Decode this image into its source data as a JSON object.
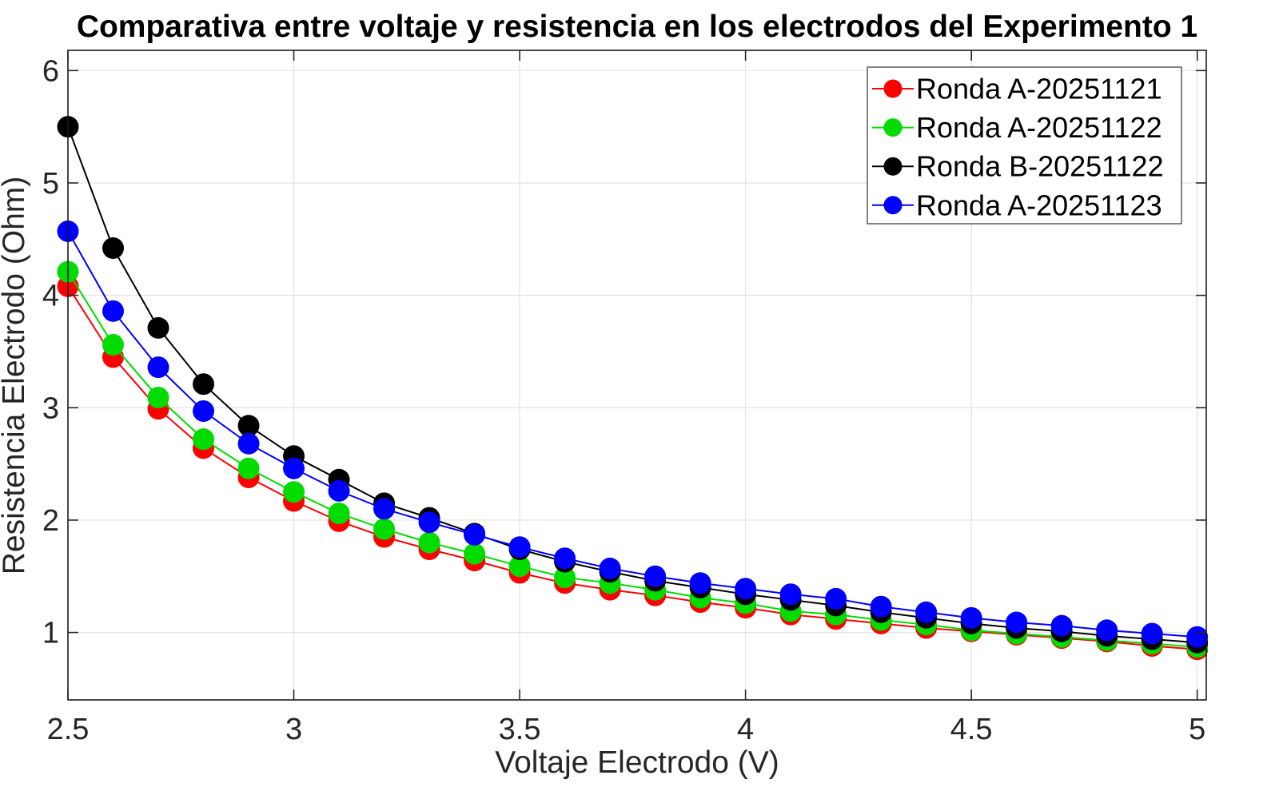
{
  "chart_data": {
    "type": "line",
    "title": "Comparativa entre voltaje y resistencia en los electrodos del Experimento 1",
    "xlabel": "Voltaje Electrodo (V)",
    "ylabel": "Resistencia Electrodo (Ohm)",
    "grid": true,
    "legend_position": "top-right",
    "xlim": [
      2.5,
      5.02
    ],
    "ylim": [
      0.4,
      6.18
    ],
    "x_ticks": [
      2.5,
      3,
      3.5,
      4,
      4.5,
      5
    ],
    "x_tick_labels": [
      "2.5",
      "3",
      "3.5",
      "4",
      "4.5",
      "5"
    ],
    "y_ticks": [
      1,
      2,
      3,
      4,
      5,
      6
    ],
    "y_tick_labels": [
      "1",
      "2",
      "3",
      "4",
      "5",
      "6"
    ],
    "x": [
      2.5,
      2.6,
      2.7,
      2.8,
      2.9,
      3.0,
      3.1,
      3.2,
      3.3,
      3.4,
      3.5,
      3.6,
      3.7,
      3.8,
      3.9,
      4.0,
      4.1,
      4.2,
      4.3,
      4.4,
      4.5,
      4.6,
      4.7,
      4.8,
      4.9,
      5.0
    ],
    "series": [
      {
        "name": "Ronda A-20251121",
        "color": "#FF0000",
        "marker": "circle",
        "values": [
          4.08,
          3.45,
          2.99,
          2.64,
          2.38,
          2.17,
          1.99,
          1.85,
          1.74,
          1.64,
          1.53,
          1.44,
          1.38,
          1.33,
          1.27,
          1.22,
          1.16,
          1.12,
          1.08,
          1.04,
          1.01,
          0.98,
          0.95,
          0.92,
          0.88,
          0.85
        ]
      },
      {
        "name": "Ronda A-20251122",
        "color": "#00DC00",
        "marker": "circle",
        "values": [
          4.21,
          3.56,
          3.09,
          2.72,
          2.46,
          2.25,
          2.06,
          1.92,
          1.8,
          1.7,
          1.59,
          1.49,
          1.44,
          1.38,
          1.31,
          1.26,
          1.19,
          1.16,
          1.11,
          1.07,
          1.02,
          0.99,
          0.96,
          0.93,
          0.9,
          0.87
        ]
      },
      {
        "name": "Ronda B-20251122",
        "color": "#000000",
        "marker": "circle",
        "values": [
          5.5,
          4.42,
          3.71,
          3.21,
          2.84,
          2.57,
          2.36,
          2.15,
          2.02,
          1.88,
          1.74,
          1.63,
          1.54,
          1.46,
          1.4,
          1.34,
          1.29,
          1.24,
          1.18,
          1.13,
          1.08,
          1.04,
          1.01,
          0.97,
          0.94,
          0.91
        ]
      },
      {
        "name": "Ronda A-20251123",
        "color": "#0000FF",
        "marker": "circle",
        "values": [
          4.57,
          3.86,
          3.36,
          2.97,
          2.68,
          2.46,
          2.26,
          2.1,
          1.98,
          1.87,
          1.76,
          1.66,
          1.57,
          1.5,
          1.44,
          1.39,
          1.34,
          1.3,
          1.23,
          1.18,
          1.13,
          1.09,
          1.06,
          1.02,
          0.99,
          0.96
        ]
      }
    ],
    "style": {
      "grid_color": "#E3E3E3",
      "axis_color": "#1a1a1a",
      "tick_color": "#262626",
      "legend_border_color": "#333333",
      "background_color": "#FFFFFF"
    }
  }
}
